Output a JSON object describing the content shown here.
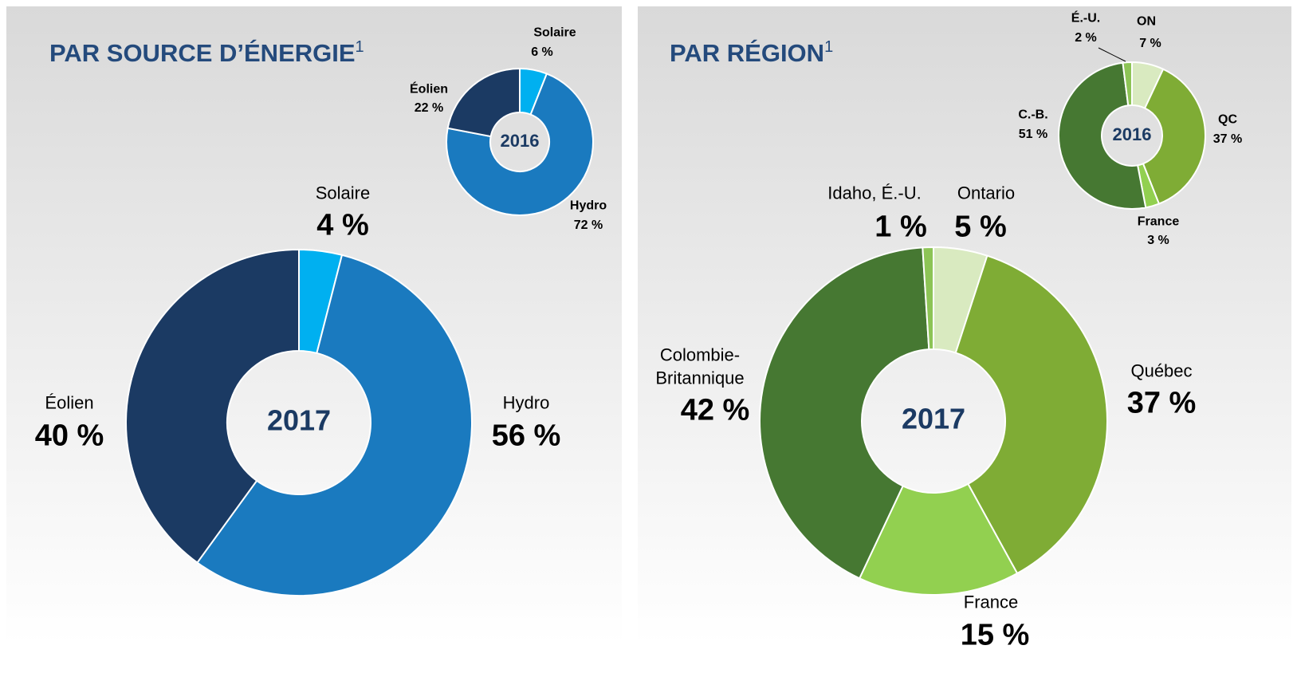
{
  "chart_data": [
    {
      "type": "pie",
      "title": "PAR SOURCE D’ÉNERGIE",
      "title_note": "1",
      "center_label": "2017",
      "categories": [
        "Solaire",
        "Hydro",
        "Éolien"
      ],
      "values": [
        4,
        56,
        40
      ],
      "value_labels": [
        "4 %",
        "56 %",
        "40 %"
      ],
      "colors": [
        "#00b0f0",
        "#1a7abf",
        "#1b3a63"
      ]
    },
    {
      "type": "pie",
      "center_label": "2016",
      "categories": [
        "Solaire",
        "Hydro",
        "Éolien"
      ],
      "values": [
        6,
        72,
        22
      ],
      "value_labels": [
        "6 %",
        "72 %",
        "22 %"
      ],
      "colors": [
        "#00b0f0",
        "#1a7abf",
        "#1b3a63"
      ]
    },
    {
      "type": "pie",
      "title": "PAR RÉGION",
      "title_note": "1",
      "center_label": "2017",
      "categories": [
        "Ontario",
        "Québec",
        "France",
        "Colombie-Britannique",
        "Idaho, É.-U."
      ],
      "values": [
        5,
        37,
        15,
        42,
        1
      ],
      "value_labels": [
        "5 %",
        "37 %",
        "15 %",
        "42 %",
        "1 %"
      ],
      "colors": [
        "#d9eac0",
        "#7fac35",
        "#92d050",
        "#467832",
        "#8dc456"
      ]
    },
    {
      "type": "pie",
      "center_label": "2016",
      "categories": [
        "ON",
        "QC",
        "France",
        "C.-B.",
        "É.-U."
      ],
      "values": [
        7,
        37,
        3,
        51,
        2
      ],
      "value_labels": [
        "7 %",
        "37 %",
        "3 %",
        "51 %",
        "2 %"
      ],
      "colors": [
        "#d9eac0",
        "#7fac35",
        "#92d050",
        "#467832",
        "#8dc456"
      ]
    }
  ]
}
